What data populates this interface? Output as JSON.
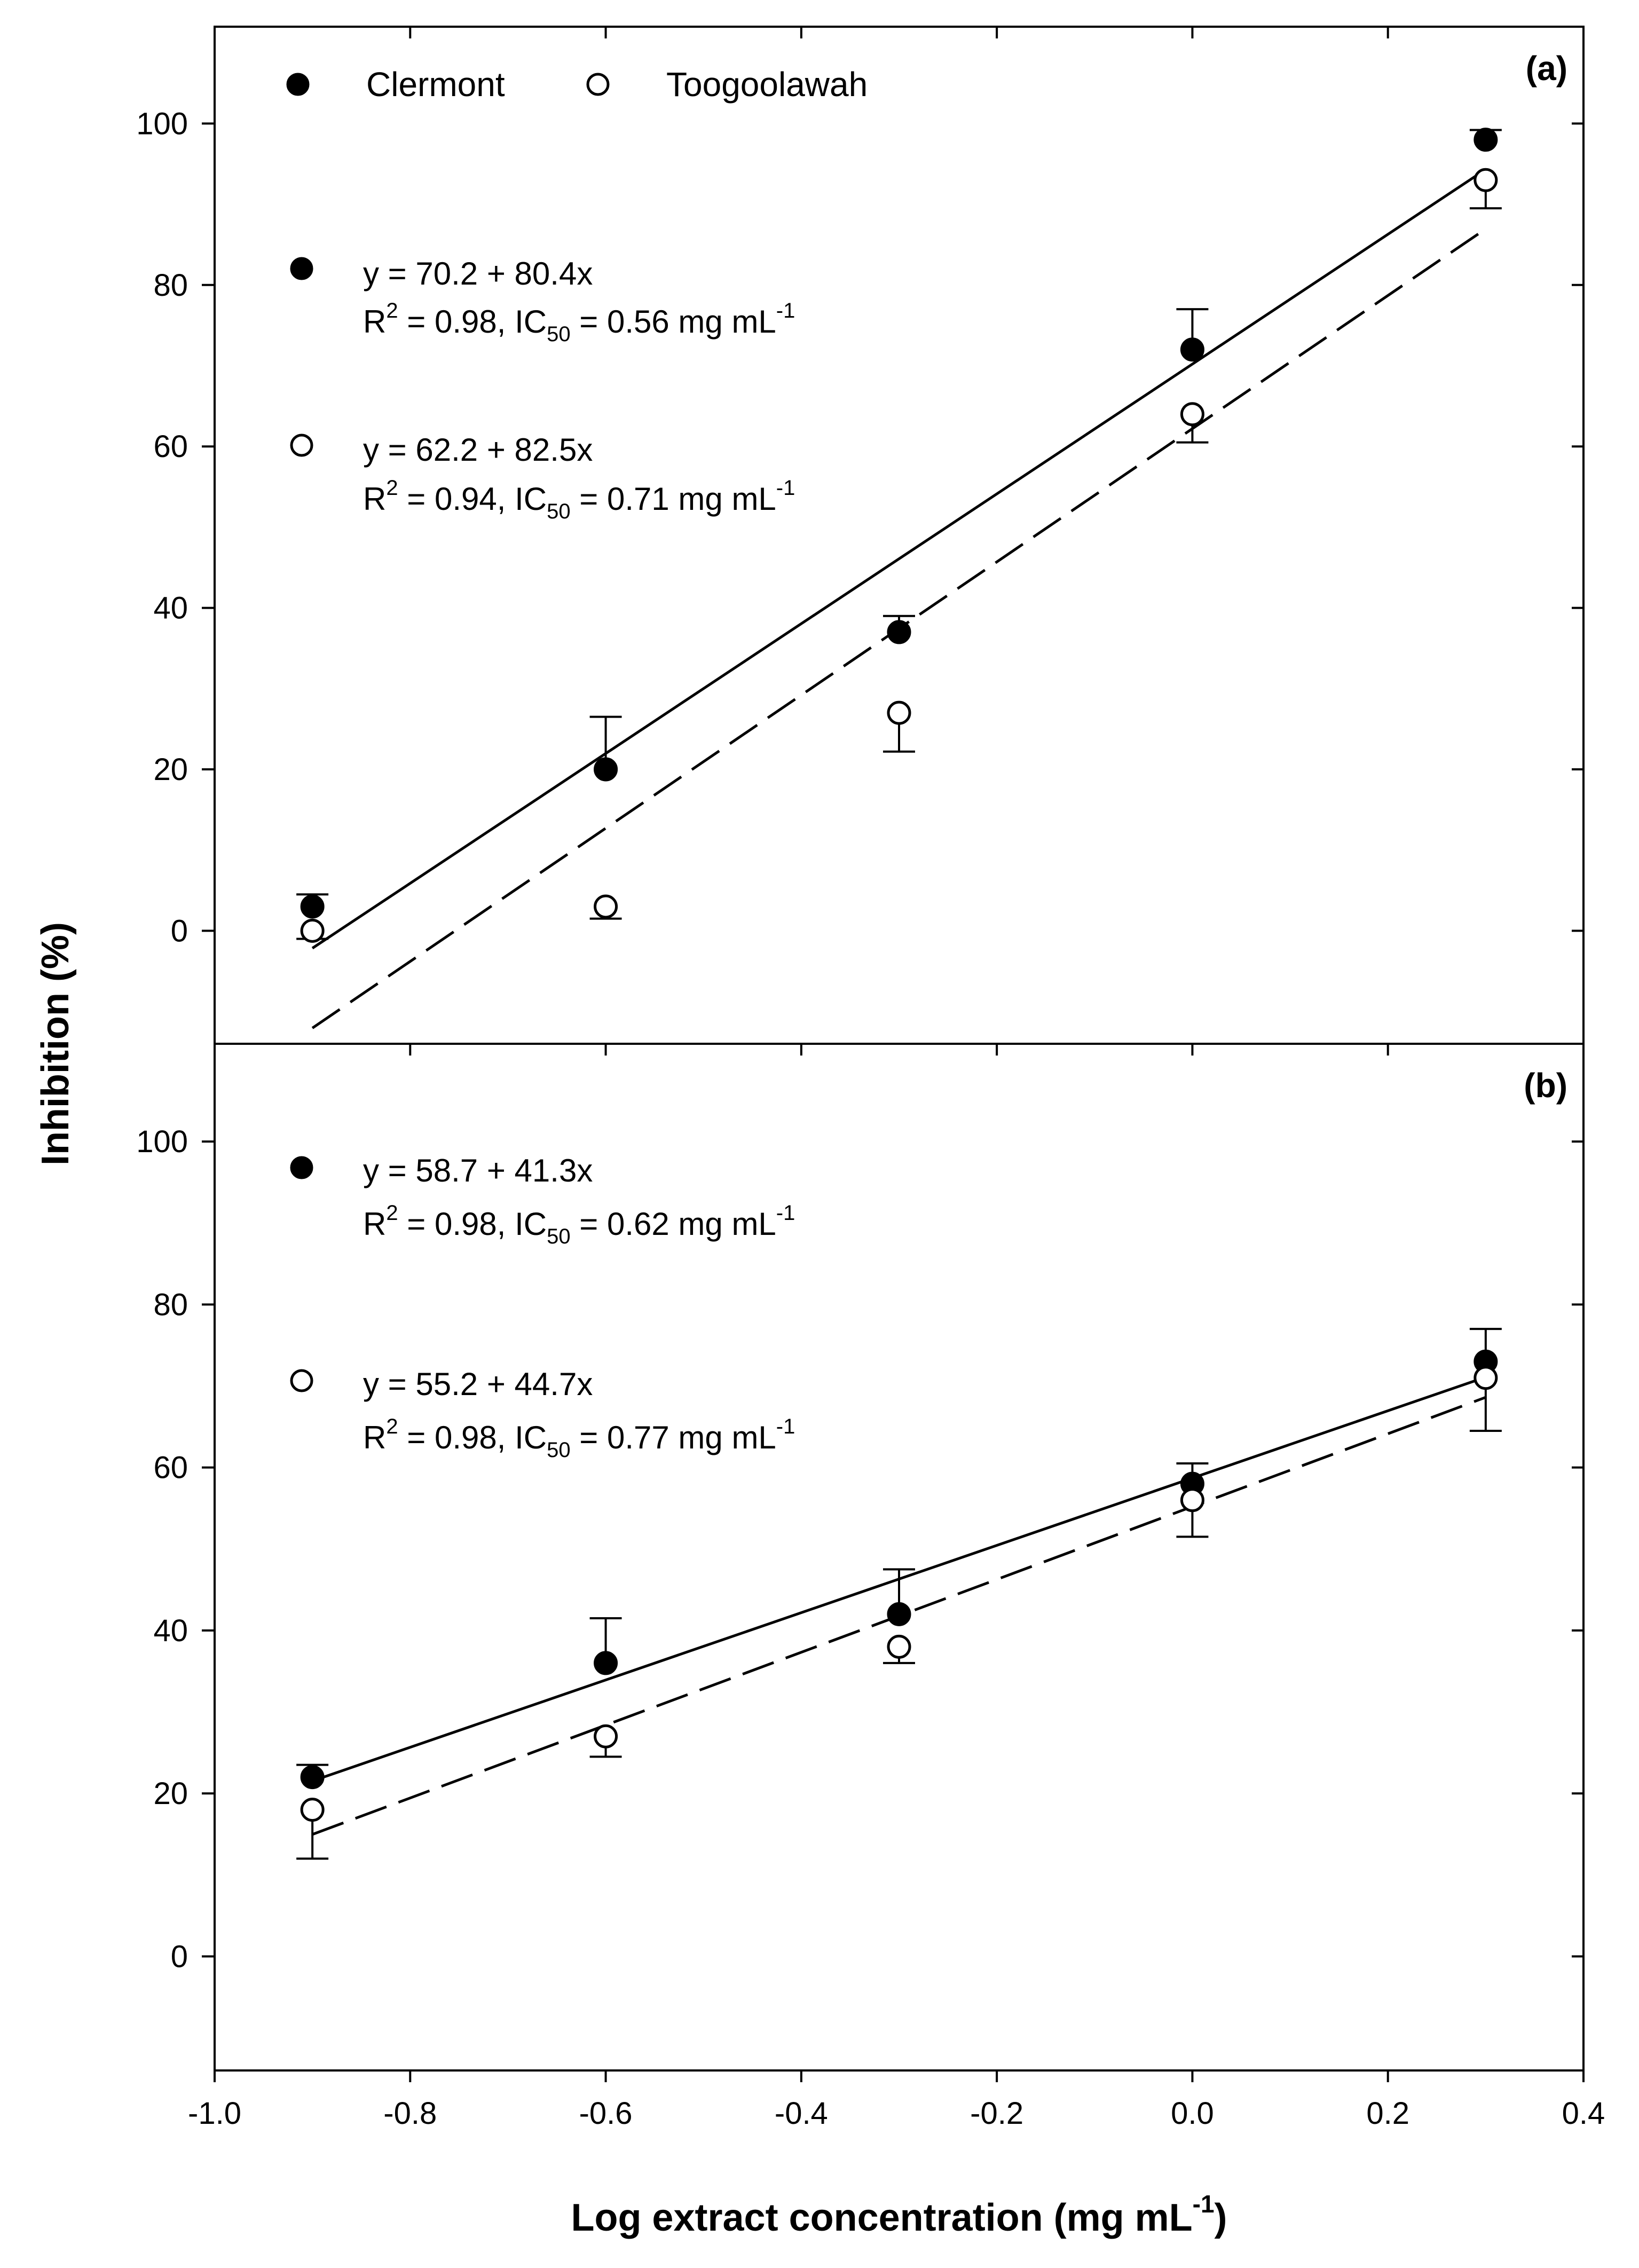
{
  "chart_data": {
    "type": "scatter",
    "xlabel": "Log extract concentration (mg mL",
    "xlabel_sup": "-1",
    "xlabel_suffix": ")",
    "ylabel": "Inhibition (%)",
    "xlim": [
      -1.0,
      0.4
    ],
    "xticks": [
      -1.0,
      -0.8,
      -0.6,
      -0.4,
      -0.2,
      0.0,
      0.2,
      0.4
    ],
    "xtick_labels": [
      "-1.0",
      "-0.8",
      "-0.6",
      "-0.4",
      "-0.2",
      "0.0",
      "0.2",
      "0.4"
    ],
    "legend": [
      {
        "name": "Clermont",
        "marker": "filled-circle"
      },
      {
        "name": "Toogoolawah",
        "marker": "open-circle"
      }
    ],
    "panels": [
      {
        "label": "(a)",
        "ylim": [
          -14,
          112
        ],
        "yticks": [
          0,
          20,
          40,
          60,
          80,
          100
        ],
        "ytick_labels": [
          "0",
          "20",
          "40",
          "60",
          "80",
          "100"
        ],
        "series": [
          {
            "name": "Clermont",
            "marker": "filled",
            "x": [
              -0.9,
              -0.6,
              -0.3,
              0.0,
              0.3
            ],
            "y": [
              3,
              20,
              37,
              72,
              98
            ],
            "err": [
              1.5,
              6.5,
              2,
              5,
              1.2
            ],
            "fit": {
              "intercept": 70.2,
              "slope": 80.4,
              "x_range": [
                -0.9,
                0.3
              ],
              "style": "solid"
            },
            "equation": "y = 70.2 + 80.4x",
            "stats": {
              "r2_prefix": "R",
              "r2_sup": "2",
              "r2_value": " = 0.98, IC",
              "ic_sub": "50",
              "ic_value": " = 0.56 mg mL",
              "unit_sup": "-1"
            }
          },
          {
            "name": "Toogoolawah",
            "marker": "open",
            "x": [
              -0.9,
              -0.6,
              -0.3,
              0.0,
              0.3
            ],
            "y": [
              0,
              3,
              27,
              64,
              93
            ],
            "err": [
              1,
              1.5,
              4.8,
              3.5,
              3.5
            ],
            "fit": {
              "intercept": 62.2,
              "slope": 82.5,
              "x_range": [
                -0.9,
                0.3
              ],
              "style": "dashed"
            },
            "equation": "y = 62.2 + 82.5x",
            "stats": {
              "r2_prefix": "R",
              "r2_sup": "2",
              "r2_value": " = 0.94, IC",
              "ic_sub": "50",
              "ic_value": " = 0.71 mg mL",
              "unit_sup": "-1"
            }
          }
        ]
      },
      {
        "label": "(b)",
        "ylim": [
          -14,
          112
        ],
        "yticks": [
          0,
          20,
          40,
          60,
          80,
          100
        ],
        "ytick_labels": [
          "0",
          "20",
          "40",
          "60",
          "80",
          "100"
        ],
        "series": [
          {
            "name": "Clermont",
            "marker": "filled",
            "x": [
              -0.9,
              -0.6,
              -0.3,
              0.0,
              0.3
            ],
            "y": [
              22,
              36,
              42,
              58,
              73
            ],
            "err": [
              1.5,
              5.5,
              5.5,
              2.5,
              4
            ],
            "fit": {
              "intercept": 58.7,
              "slope": 41.3,
              "x_range": [
                -0.9,
                0.3
              ],
              "style": "solid"
            },
            "equation": "y = 58.7 + 41.3x",
            "stats": {
              "r2_prefix": "R",
              "r2_sup": "2",
              "r2_value": " = 0.98, IC",
              "ic_sub": "50",
              "ic_value": " = 0.62 mg mL",
              "unit_sup": "-1"
            }
          },
          {
            "name": "Toogoolawah",
            "marker": "open",
            "x": [
              -0.9,
              -0.6,
              -0.3,
              0.0,
              0.3
            ],
            "y": [
              18,
              27,
              38,
              56,
              71
            ],
            "err": [
              6,
              2.5,
              2,
              4.5,
              6.5
            ],
            "fit": {
              "intercept": 55.2,
              "slope": 44.7,
              "x_range": [
                -0.9,
                0.3
              ],
              "style": "dashed"
            },
            "equation": "y = 55.2 + 44.7x",
            "stats": {
              "r2_prefix": "R",
              "r2_sup": "2",
              "r2_value": " = 0.98, IC",
              "ic_sub": "50",
              "ic_value": " = 0.77 mg mL",
              "unit_sup": "-1"
            }
          }
        ]
      }
    ]
  }
}
